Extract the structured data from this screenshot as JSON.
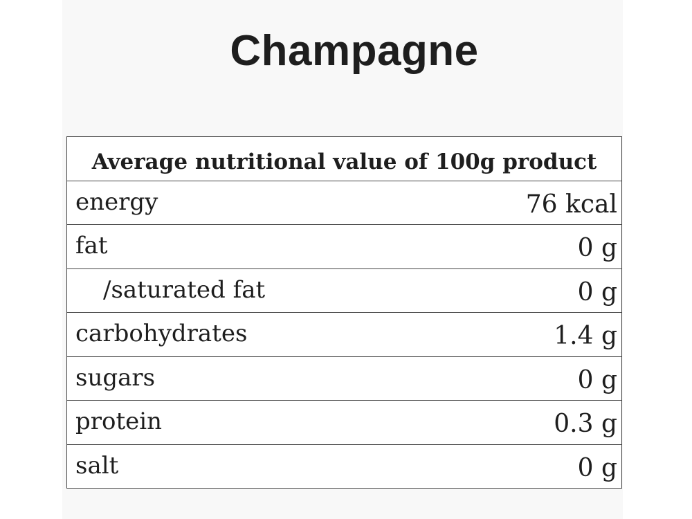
{
  "title": "Champagne",
  "table": {
    "header": "Average nutritional value of 100g product",
    "rows": [
      {
        "label": "energy",
        "value": "76 kcal"
      },
      {
        "label": "fat",
        "value": "0 g"
      },
      {
        "label": "/saturated fat",
        "value": "0 g"
      },
      {
        "label": "carbohydrates",
        "value": "1.4 g"
      },
      {
        "label": "sugars",
        "value": "0 g"
      },
      {
        "label": "protein",
        "value": "0.3 g"
      },
      {
        "label": "salt",
        "value": "0 g"
      }
    ]
  }
}
